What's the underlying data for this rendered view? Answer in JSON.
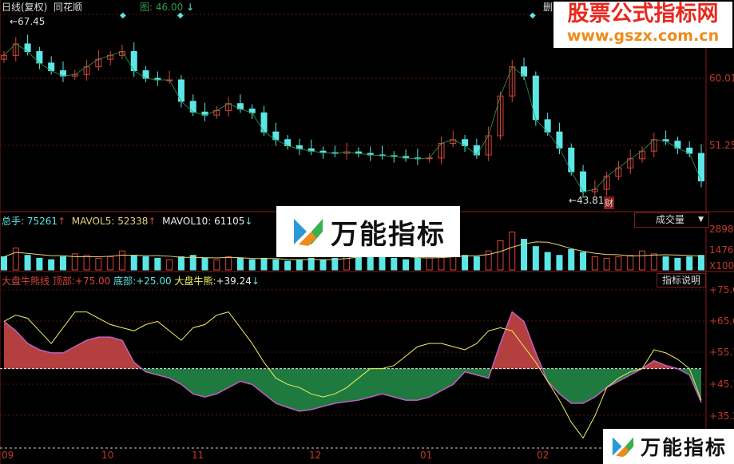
{
  "header": {
    "title": "日线(复权)",
    "stock_name": "同花顺",
    "tool_label": "图",
    "tool_value": "46.00",
    "top_right_partial": "删"
  },
  "main": {
    "high_label": "67.45",
    "low_label": "43.81",
    "finance_marker": "财",
    "price_axis": [
      "60.01",
      "51.25"
    ]
  },
  "volume": {
    "total_label": "总手:",
    "total_value": "75261",
    "mavol5_label": "MAVOL5:",
    "mavol5_value": "52338",
    "mavol10_label": "MAVOL10:",
    "mavol10_value": "61105",
    "selector": "成交量",
    "axis": [
      "2898",
      "1476",
      "X100"
    ]
  },
  "indicator": {
    "name": "大盘牛熊线",
    "top_label": "顶部:",
    "top_value": "+75.00",
    "bottom_label": "底部:",
    "bottom_value": "+25.00",
    "current_label": "大盘牛熊:",
    "current_value": "+39.24",
    "help_button": "指标说明",
    "axis": [
      "+75.0",
      "+65.0",
      "+55.1",
      "+45.1",
      "+35.2"
    ]
  },
  "time_axis": [
    "09",
    "10",
    "11",
    "12",
    "01",
    "02"
  ],
  "watermarks": {
    "site_title": "股票公式指标网",
    "site_url": "www.gszx.com.cn",
    "logo_text": "万能指标"
  },
  "colors": {
    "up": "#d9443a",
    "down": "#5ce6e6",
    "bull_fill": "#b3403f",
    "bear_fill": "#1e7a3e",
    "yellow": "#f0f060",
    "axis": "#c0392b"
  },
  "chart_data": {
    "type": "candlestick",
    "x_ticks": [
      "09",
      "10",
      "11",
      "12",
      "01",
      "02"
    ],
    "price_range": [
      43.81,
      67.45
    ],
    "close": [
      63,
      64.5,
      63.5,
      62,
      61,
      60.3,
      60.5,
      61.5,
      62.5,
      63,
      63.5,
      61,
      60,
      59.8,
      59.8,
      57,
      55.6,
      55.2,
      55.8,
      56.7,
      56,
      55.5,
      53,
      52,
      51.2,
      50.8,
      50.5,
      50.3,
      50.2,
      50.4,
      50.2,
      50.0,
      49.9,
      49.8,
      49.6,
      49.5,
      49.6,
      51.5,
      52,
      51.2,
      50,
      52.5,
      57.7,
      61.5,
      60.3,
      54.6,
      53,
      50.9,
      47.8,
      45.2,
      45.5,
      47.2,
      48.3,
      49.5,
      50.5,
      52,
      51.8,
      50.9,
      50.2,
      46.6
    ],
    "volume_x100": [
      900,
      1500,
      1000,
      800,
      700,
      900,
      1100,
      1000,
      800,
      900,
      1300,
      1000,
      900,
      800,
      700,
      900,
      1000,
      800,
      700,
      900,
      800,
      700,
      800,
      700,
      600,
      700,
      800,
      700,
      800,
      900,
      1200,
      1000,
      900,
      800,
      700,
      800,
      900,
      1000,
      1100,
      1000,
      900,
      1300,
      2000,
      2600,
      2100,
      1600,
      1200,
      1000,
      1400,
      1200,
      900,
      800,
      900,
      1000,
      1300,
      1100,
      900,
      800,
      900,
      1000
    ],
    "bull_bear": [
      65,
      62,
      58,
      56,
      55,
      55,
      57,
      59,
      60,
      60,
      59,
      52,
      49,
      48,
      47,
      45,
      42,
      41,
      42,
      44,
      46,
      45,
      42,
      39,
      37.7,
      36.5,
      37,
      38,
      39,
      39.5,
      40,
      41,
      42,
      41,
      40,
      40,
      41,
      43,
      45,
      49,
      48,
      47,
      58,
      68,
      65,
      55,
      46,
      42,
      39,
      39,
      41,
      44,
      46,
      48,
      50,
      52.5,
      51,
      50,
      48,
      39.24
    ],
    "signal_line": [
      65,
      67,
      66,
      62,
      58,
      63,
      68,
      68,
      66,
      64,
      63,
      62,
      64,
      65,
      62,
      59,
      63,
      64,
      67,
      68,
      63,
      58,
      52,
      47,
      45,
      44,
      42,
      41,
      42,
      44,
      47,
      50,
      50,
      51,
      54,
      57,
      58,
      58,
      57,
      56,
      58,
      62,
      63,
      62,
      57,
      52,
      46,
      40,
      33,
      28,
      35,
      44,
      47,
      49,
      50,
      56,
      55,
      53,
      50,
      40
    ],
    "indicator_range": [
      35.2,
      75.0
    ],
    "indicator_baseline": 50
  }
}
